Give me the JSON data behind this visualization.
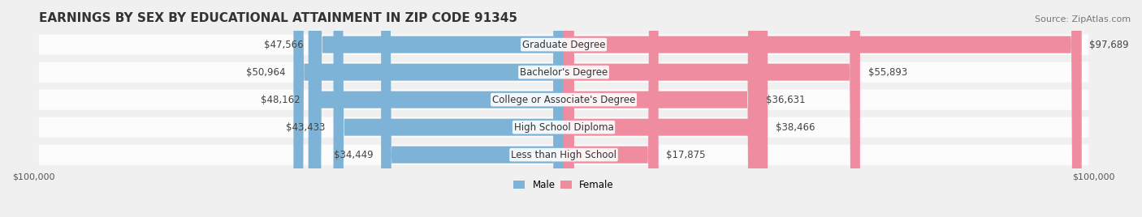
{
  "title": "EARNINGS BY SEX BY EDUCATIONAL ATTAINMENT IN ZIP CODE 91345",
  "source": "Source: ZipAtlas.com",
  "categories": [
    "Less than High School",
    "High School Diploma",
    "College or Associate's Degree",
    "Bachelor's Degree",
    "Graduate Degree"
  ],
  "male_values": [
    34449,
    43433,
    48162,
    50964,
    47566
  ],
  "female_values": [
    17875,
    38466,
    36631,
    55893,
    97689
  ],
  "male_color": "#7EB3D8",
  "female_color": "#F08CA0",
  "male_label": "Male",
  "female_label": "Female",
  "x_max": 100000,
  "bg_color": "#f0f0f0",
  "bar_bg_color": "#e0e0e0",
  "title_fontsize": 11,
  "source_fontsize": 8,
  "label_fontsize": 8.5,
  "tick_fontsize": 8
}
